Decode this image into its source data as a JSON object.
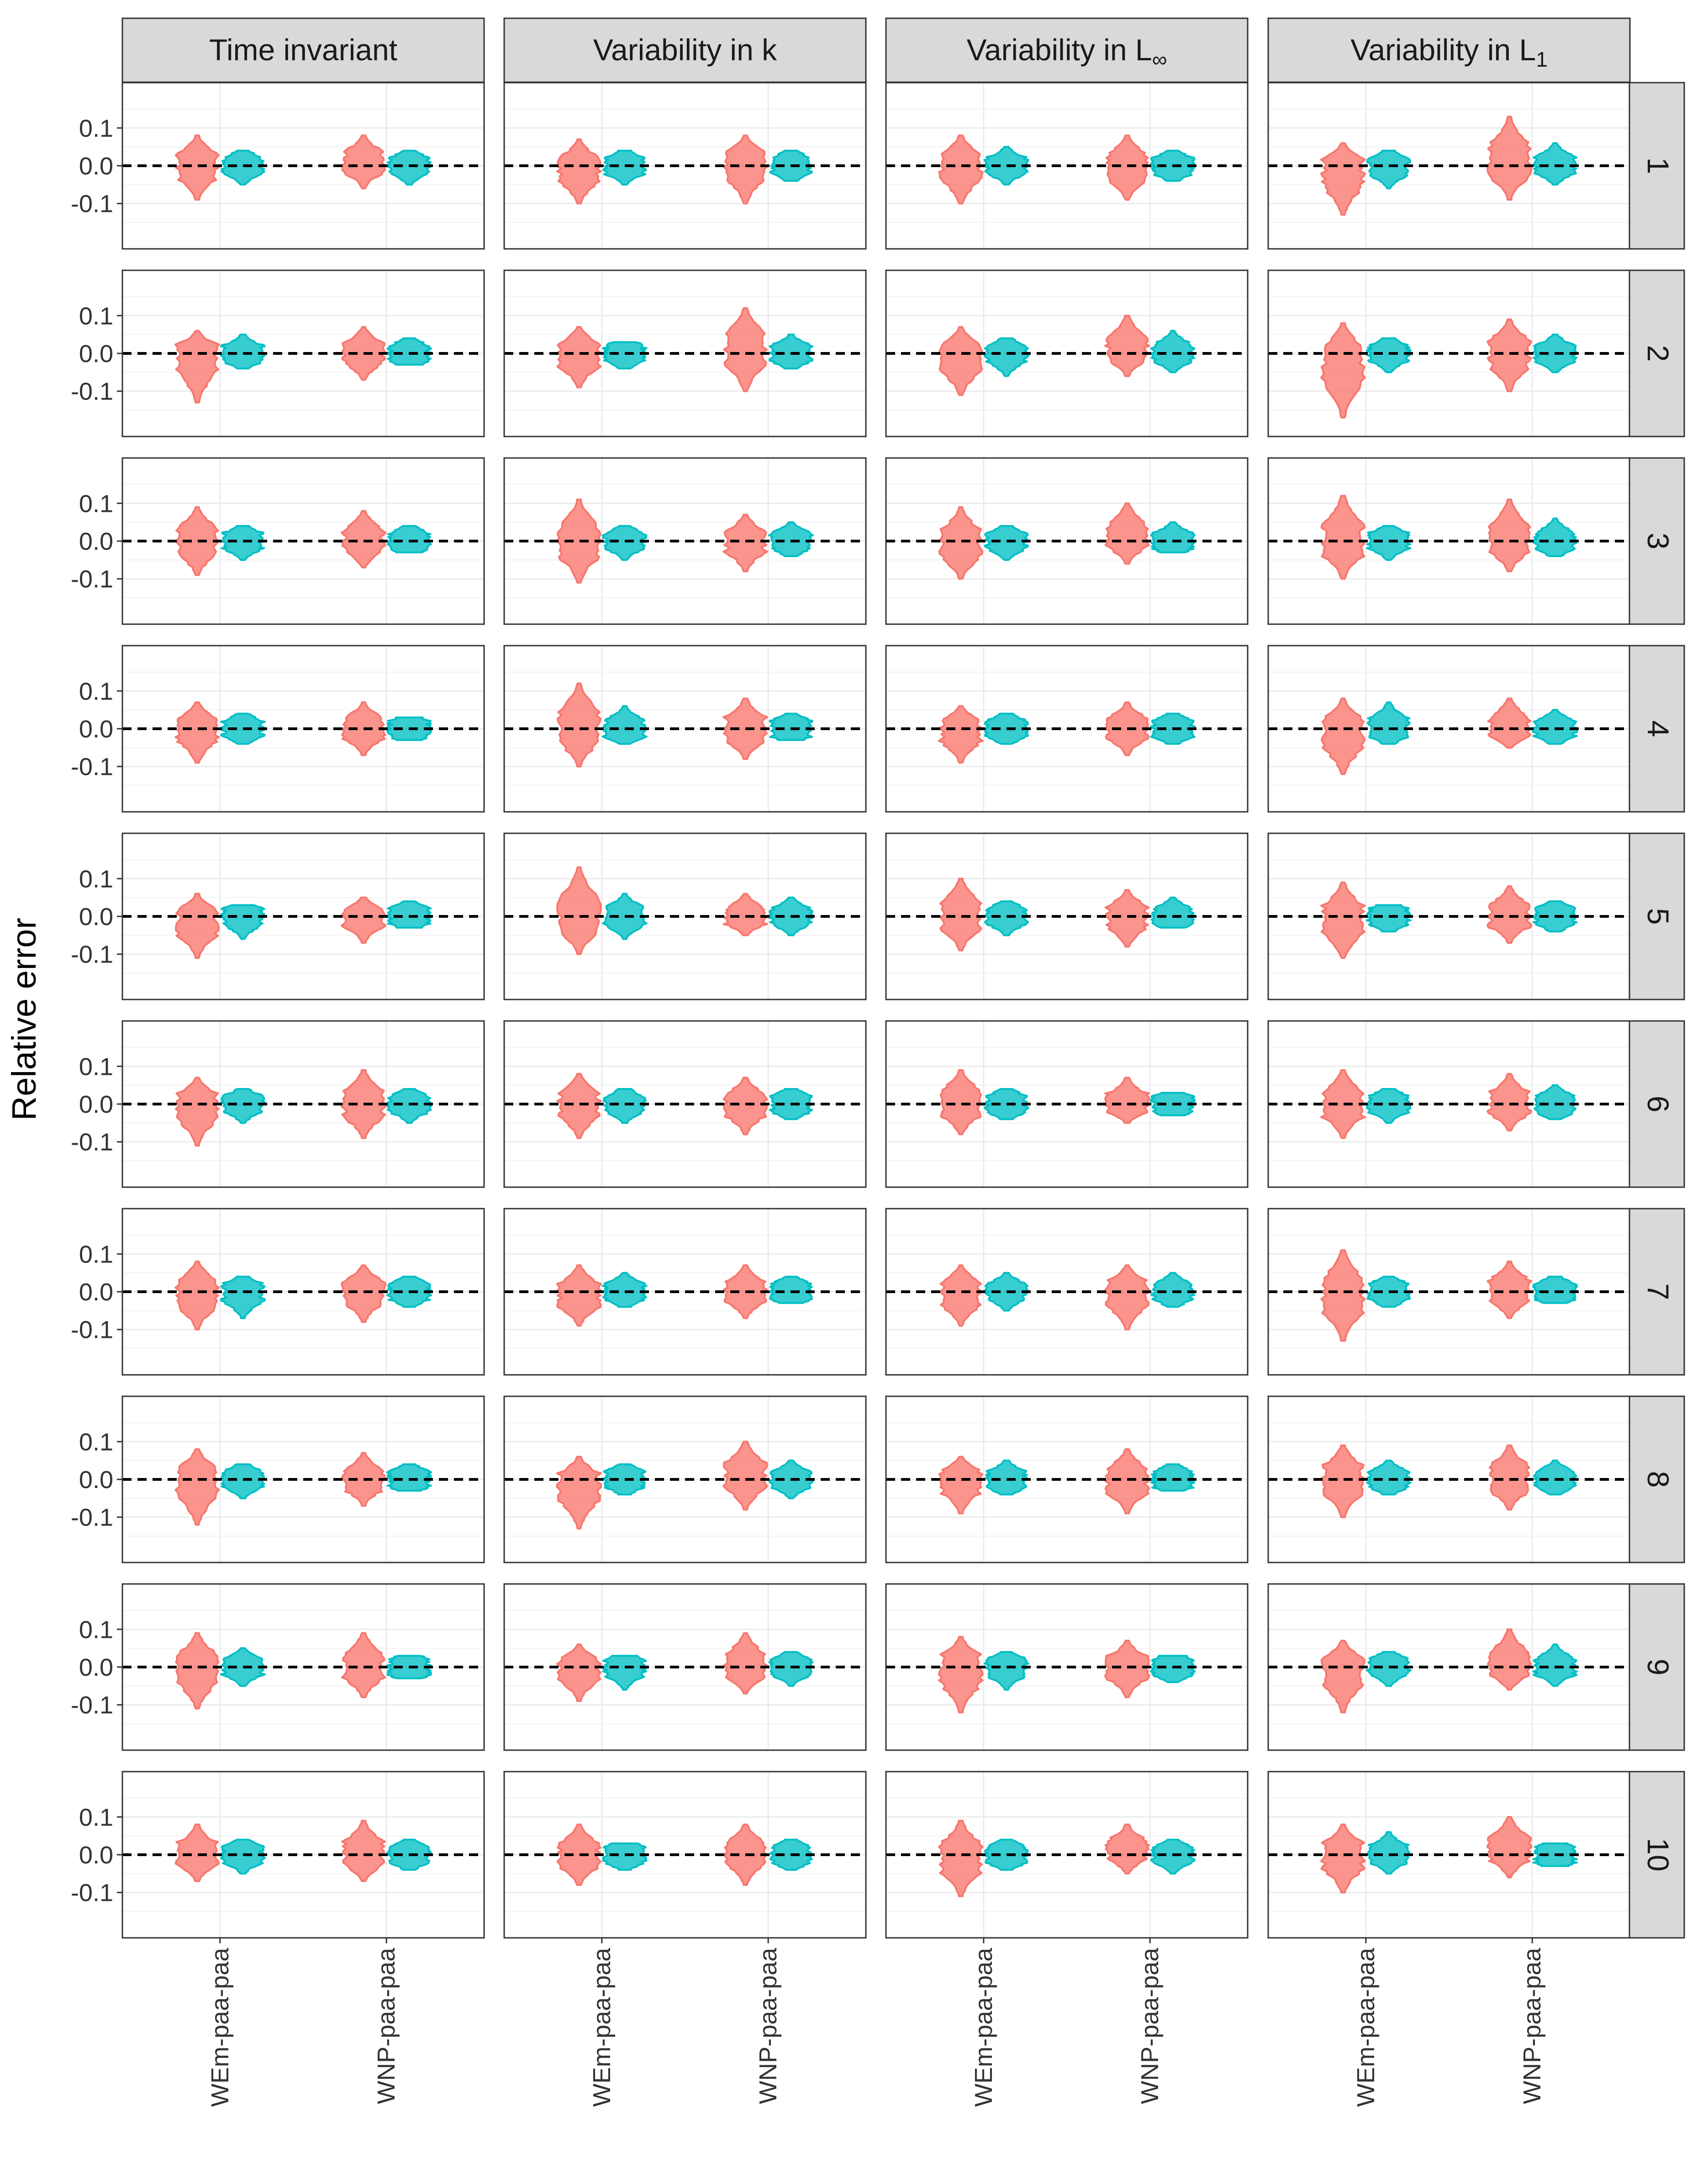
{
  "chart_data": {
    "type": "violin",
    "ylabel": "Relative error",
    "xlabel": "",
    "ylim": [
      -0.22,
      0.22
    ],
    "yticks": [
      "0.1",
      "0.0",
      "-0.1"
    ],
    "ytick_values": [
      0.1,
      0.0,
      -0.1
    ],
    "reference_line": 0.0,
    "grid": true,
    "columns": [
      "Time invariant",
      "Variability in k",
      "Variability in L",
      "Variability in L"
    ],
    "column_symbols": [
      "",
      "",
      "∞",
      "1"
    ],
    "rows": [
      "1",
      "2",
      "3",
      "4",
      "5",
      "6",
      "7",
      "8",
      "9",
      "10"
    ],
    "categories": [
      "WEm-paa-paa",
      "WNP-paa-paa"
    ],
    "series_colors": [
      "#F8766D",
      "#00BFC4"
    ],
    "violins": [
      {
        "scenario": "Time invariant",
        "age": "1",
        "values": [
          [
            -0.09,
            0.08,
            0.0
          ],
          [
            -0.05,
            0.04,
            0.0
          ],
          [
            -0.06,
            0.08,
            0.01
          ],
          [
            -0.05,
            0.04,
            0.0
          ]
        ]
      },
      {
        "scenario": "Variability in k",
        "age": "1",
        "values": [
          [
            -0.1,
            0.07,
            -0.01
          ],
          [
            -0.05,
            0.04,
            0.0
          ],
          [
            -0.1,
            0.08,
            0.01
          ],
          [
            -0.04,
            0.04,
            0.0
          ]
        ]
      },
      {
        "scenario": "Variability in L∞",
        "age": "1",
        "values": [
          [
            -0.1,
            0.08,
            0.0
          ],
          [
            -0.05,
            0.05,
            0.0
          ],
          [
            -0.09,
            0.08,
            0.0
          ],
          [
            -0.04,
            0.04,
            0.0
          ]
        ]
      },
      {
        "scenario": "Variability in L1",
        "age": "1",
        "values": [
          [
            -0.13,
            0.06,
            -0.01
          ],
          [
            -0.06,
            0.04,
            0.0
          ],
          [
            -0.09,
            0.13,
            0.01
          ],
          [
            -0.05,
            0.06,
            0.0
          ]
        ]
      },
      {
        "scenario": "Time invariant",
        "age": "2",
        "values": [
          [
            -0.13,
            0.06,
            0.0
          ],
          [
            -0.04,
            0.05,
            0.0
          ],
          [
            -0.07,
            0.07,
            0.0
          ],
          [
            -0.03,
            0.04,
            0.0
          ]
        ]
      },
      {
        "scenario": "Variability in k",
        "age": "2",
        "values": [
          [
            -0.09,
            0.07,
            0.0
          ],
          [
            -0.04,
            0.03,
            0.0
          ],
          [
            -0.1,
            0.12,
            0.01
          ],
          [
            -0.04,
            0.05,
            0.0
          ]
        ]
      },
      {
        "scenario": "Variability in L∞",
        "age": "2",
        "values": [
          [
            -0.11,
            0.07,
            -0.01
          ],
          [
            -0.06,
            0.04,
            0.0
          ],
          [
            -0.06,
            0.1,
            0.01
          ],
          [
            -0.05,
            0.06,
            0.0
          ]
        ]
      },
      {
        "scenario": "Variability in L1",
        "age": "2",
        "values": [
          [
            -0.17,
            0.08,
            -0.02
          ],
          [
            -0.05,
            0.04,
            0.0
          ],
          [
            -0.1,
            0.09,
            0.0
          ],
          [
            -0.05,
            0.05,
            0.0
          ]
        ]
      },
      {
        "scenario": "Time invariant",
        "age": "3",
        "values": [
          [
            -0.09,
            0.09,
            0.0
          ],
          [
            -0.05,
            0.04,
            0.0
          ],
          [
            -0.07,
            0.08,
            0.0
          ],
          [
            -0.03,
            0.04,
            0.0
          ]
        ]
      },
      {
        "scenario": "Variability in k",
        "age": "3",
        "values": [
          [
            -0.11,
            0.11,
            0.0
          ],
          [
            -0.05,
            0.04,
            0.0
          ],
          [
            -0.08,
            0.07,
            0.0
          ],
          [
            -0.04,
            0.05,
            0.0
          ]
        ]
      },
      {
        "scenario": "Variability in L∞",
        "age": "3",
        "values": [
          [
            -0.1,
            0.09,
            -0.01
          ],
          [
            -0.05,
            0.04,
            0.0
          ],
          [
            -0.06,
            0.1,
            0.01
          ],
          [
            -0.03,
            0.05,
            0.0
          ]
        ]
      },
      {
        "scenario": "Variability in L1",
        "age": "3",
        "values": [
          [
            -0.1,
            0.12,
            0.0
          ],
          [
            -0.05,
            0.04,
            0.0
          ],
          [
            -0.08,
            0.11,
            0.0
          ],
          [
            -0.04,
            0.06,
            0.0
          ]
        ]
      },
      {
        "scenario": "Time invariant",
        "age": "4",
        "values": [
          [
            -0.09,
            0.07,
            0.0
          ],
          [
            -0.04,
            0.04,
            0.0
          ],
          [
            -0.07,
            0.07,
            0.0
          ],
          [
            -0.03,
            0.03,
            0.0
          ]
        ]
      },
      {
        "scenario": "Variability in k",
        "age": "4",
        "values": [
          [
            -0.1,
            0.12,
            0.0
          ],
          [
            -0.04,
            0.06,
            0.0
          ],
          [
            -0.08,
            0.08,
            0.0
          ],
          [
            -0.03,
            0.04,
            0.0
          ]
        ]
      },
      {
        "scenario": "Variability in L∞",
        "age": "4",
        "values": [
          [
            -0.09,
            0.06,
            0.0
          ],
          [
            -0.04,
            0.04,
            0.0
          ],
          [
            -0.07,
            0.07,
            0.0
          ],
          [
            -0.04,
            0.04,
            0.0
          ]
        ]
      },
      {
        "scenario": "Variability in L1",
        "age": "4",
        "values": [
          [
            -0.12,
            0.08,
            -0.01
          ],
          [
            -0.04,
            0.07,
            0.0
          ],
          [
            -0.05,
            0.08,
            0.0
          ],
          [
            -0.04,
            0.05,
            0.0
          ]
        ]
      },
      {
        "scenario": "Time invariant",
        "age": "5",
        "values": [
          [
            -0.11,
            0.06,
            -0.01
          ],
          [
            -0.06,
            0.03,
            0.0
          ],
          [
            -0.07,
            0.05,
            0.0
          ],
          [
            -0.03,
            0.04,
            0.0
          ]
        ]
      },
      {
        "scenario": "Variability in k",
        "age": "5",
        "values": [
          [
            -0.1,
            0.13,
            0.0
          ],
          [
            -0.06,
            0.06,
            0.0
          ],
          [
            -0.05,
            0.06,
            0.0
          ],
          [
            -0.05,
            0.05,
            0.0
          ]
        ]
      },
      {
        "scenario": "Variability in L∞",
        "age": "5",
        "values": [
          [
            -0.09,
            0.1,
            0.0
          ],
          [
            -0.05,
            0.04,
            0.0
          ],
          [
            -0.08,
            0.07,
            0.0
          ],
          [
            -0.03,
            0.05,
            0.0
          ]
        ]
      },
      {
        "scenario": "Variability in L1",
        "age": "5",
        "values": [
          [
            -0.11,
            0.09,
            -0.01
          ],
          [
            -0.04,
            0.03,
            0.0
          ],
          [
            -0.07,
            0.08,
            0.0
          ],
          [
            -0.04,
            0.04,
            0.0
          ]
        ]
      },
      {
        "scenario": "Time invariant",
        "age": "6",
        "values": [
          [
            -0.11,
            0.07,
            0.0
          ],
          [
            -0.05,
            0.04,
            0.0
          ],
          [
            -0.09,
            0.09,
            0.0
          ],
          [
            -0.05,
            0.04,
            0.0
          ]
        ]
      },
      {
        "scenario": "Variability in k",
        "age": "6",
        "values": [
          [
            -0.09,
            0.08,
            0.0
          ],
          [
            -0.05,
            0.04,
            0.0
          ],
          [
            -0.08,
            0.07,
            0.0
          ],
          [
            -0.04,
            0.04,
            0.0
          ]
        ]
      },
      {
        "scenario": "Variability in L∞",
        "age": "6",
        "values": [
          [
            -0.08,
            0.09,
            0.0
          ],
          [
            -0.04,
            0.04,
            0.0
          ],
          [
            -0.05,
            0.07,
            0.0
          ],
          [
            -0.03,
            0.03,
            0.0
          ]
        ]
      },
      {
        "scenario": "Variability in L1",
        "age": "6",
        "values": [
          [
            -0.09,
            0.09,
            0.0
          ],
          [
            -0.05,
            0.04,
            0.0
          ],
          [
            -0.07,
            0.08,
            0.0
          ],
          [
            -0.04,
            0.05,
            0.0
          ]
        ]
      },
      {
        "scenario": "Time invariant",
        "age": "7",
        "values": [
          [
            -0.1,
            0.08,
            0.0
          ],
          [
            -0.07,
            0.04,
            0.0
          ],
          [
            -0.08,
            0.07,
            0.0
          ],
          [
            -0.04,
            0.04,
            0.0
          ]
        ]
      },
      {
        "scenario": "Variability in k",
        "age": "7",
        "values": [
          [
            -0.09,
            0.07,
            -0.01
          ],
          [
            -0.04,
            0.05,
            0.0
          ],
          [
            -0.07,
            0.07,
            0.0
          ],
          [
            -0.03,
            0.04,
            0.0
          ]
        ]
      },
      {
        "scenario": "Variability in L∞",
        "age": "7",
        "values": [
          [
            -0.09,
            0.07,
            0.0
          ],
          [
            -0.05,
            0.05,
            0.0
          ],
          [
            -0.1,
            0.07,
            0.0
          ],
          [
            -0.04,
            0.05,
            0.0
          ]
        ]
      },
      {
        "scenario": "Variability in L1",
        "age": "7",
        "values": [
          [
            -0.13,
            0.11,
            -0.01
          ],
          [
            -0.04,
            0.04,
            0.0
          ],
          [
            -0.07,
            0.08,
            0.0
          ],
          [
            -0.03,
            0.04,
            0.0
          ]
        ]
      },
      {
        "scenario": "Time invariant",
        "age": "8",
        "values": [
          [
            -0.12,
            0.08,
            0.0
          ],
          [
            -0.05,
            0.04,
            0.0
          ],
          [
            -0.07,
            0.07,
            0.0
          ],
          [
            -0.03,
            0.04,
            0.0
          ]
        ]
      },
      {
        "scenario": "Variability in k",
        "age": "8",
        "values": [
          [
            -0.13,
            0.06,
            -0.01
          ],
          [
            -0.04,
            0.04,
            0.0
          ],
          [
            -0.08,
            0.1,
            0.01
          ],
          [
            -0.05,
            0.05,
            0.0
          ]
        ]
      },
      {
        "scenario": "Variability in L∞",
        "age": "8",
        "values": [
          [
            -0.09,
            0.06,
            0.0
          ],
          [
            -0.04,
            0.05,
            0.0
          ],
          [
            -0.09,
            0.08,
            0.0
          ],
          [
            -0.03,
            0.04,
            0.0
          ]
        ]
      },
      {
        "scenario": "Variability in L1",
        "age": "8",
        "values": [
          [
            -0.1,
            0.09,
            0.0
          ],
          [
            -0.04,
            0.05,
            0.0
          ],
          [
            -0.08,
            0.09,
            0.0
          ],
          [
            -0.04,
            0.05,
            0.0
          ]
        ]
      },
      {
        "scenario": "Time invariant",
        "age": "9",
        "values": [
          [
            -0.11,
            0.09,
            0.0
          ],
          [
            -0.05,
            0.05,
            0.0
          ],
          [
            -0.08,
            0.09,
            0.0
          ],
          [
            -0.03,
            0.03,
            0.0
          ]
        ]
      },
      {
        "scenario": "Variability in k",
        "age": "9",
        "values": [
          [
            -0.09,
            0.06,
            0.0
          ],
          [
            -0.06,
            0.03,
            0.0
          ],
          [
            -0.07,
            0.09,
            0.0
          ],
          [
            -0.05,
            0.04,
            0.0
          ]
        ]
      },
      {
        "scenario": "Variability in L∞",
        "age": "9",
        "values": [
          [
            -0.12,
            0.08,
            0.0
          ],
          [
            -0.06,
            0.04,
            0.0
          ],
          [
            -0.08,
            0.07,
            0.0
          ],
          [
            -0.04,
            0.03,
            0.0
          ]
        ]
      },
      {
        "scenario": "Variability in L1",
        "age": "9",
        "values": [
          [
            -0.12,
            0.07,
            0.0
          ],
          [
            -0.05,
            0.04,
            0.0
          ],
          [
            -0.06,
            0.1,
            0.0
          ],
          [
            -0.05,
            0.06,
            0.0
          ]
        ]
      },
      {
        "scenario": "Time invariant",
        "age": "10",
        "values": [
          [
            -0.07,
            0.08,
            0.0
          ],
          [
            -0.05,
            0.04,
            0.0
          ],
          [
            -0.07,
            0.09,
            0.0
          ],
          [
            -0.04,
            0.04,
            0.0
          ]
        ]
      },
      {
        "scenario": "Variability in k",
        "age": "10",
        "values": [
          [
            -0.08,
            0.08,
            0.0
          ],
          [
            -0.04,
            0.03,
            0.0
          ],
          [
            -0.08,
            0.08,
            0.01
          ],
          [
            -0.04,
            0.04,
            0.0
          ]
        ]
      },
      {
        "scenario": "Variability in L∞",
        "age": "10",
        "values": [
          [
            -0.11,
            0.09,
            -0.01
          ],
          [
            -0.04,
            0.04,
            0.0
          ],
          [
            -0.05,
            0.08,
            0.01
          ],
          [
            -0.05,
            0.04,
            0.0
          ]
        ]
      },
      {
        "scenario": "Variability in L1",
        "age": "10",
        "values": [
          [
            -0.1,
            0.08,
            0.0
          ],
          [
            -0.05,
            0.06,
            0.0
          ],
          [
            -0.06,
            0.1,
            0.01
          ],
          [
            -0.03,
            0.03,
            0.0
          ]
        ]
      }
    ]
  }
}
